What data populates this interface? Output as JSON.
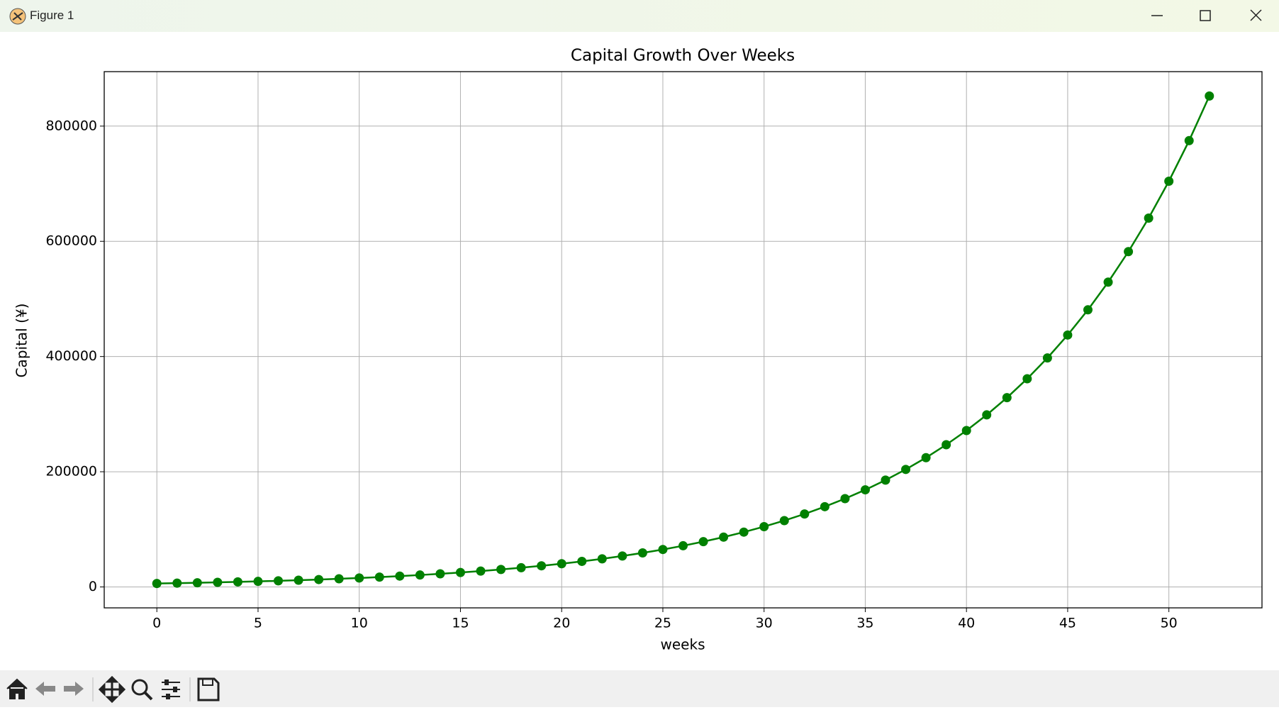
{
  "window": {
    "title": "Figure 1"
  },
  "chart_data": {
    "type": "line",
    "title": "Capital Growth Over Weeks",
    "xlabel": "weeks",
    "ylabel": "Capital (¥)",
    "x": [
      0,
      1,
      2,
      3,
      4,
      5,
      6,
      7,
      8,
      9,
      10,
      11,
      12,
      13,
      14,
      15,
      16,
      17,
      18,
      19,
      20,
      21,
      22,
      23,
      24,
      25,
      26,
      27,
      28,
      29,
      30,
      31,
      32,
      33,
      34,
      35,
      36,
      37,
      38,
      39,
      40,
      41,
      42,
      43,
      44,
      45,
      46,
      47,
      48,
      49,
      50,
      51,
      52
    ],
    "series": [
      {
        "color": "#008000",
        "values": [
          6000,
          6600,
          7260,
          7986,
          8785,
          9663,
          10629,
          11692,
          12862,
          14148,
          15562,
          17119,
          18831,
          20714,
          22785,
          25063,
          27570,
          30327,
          33360,
          36695,
          40365,
          44401,
          48842,
          53726,
          59098,
          65008,
          71509,
          78660,
          86526,
          95179,
          104696,
          115166,
          126683,
          139351,
          153286,
          168615,
          185476,
          204024,
          224426,
          246869,
          271556,
          298711,
          328582,
          361440,
          397584,
          437343,
          481077,
          529185,
          582103,
          640314,
          704345,
          774780,
          852258
        ]
      }
    ],
    "xlim": [
      -2.6,
      54.6
    ],
    "xticks": [
      0,
      5,
      10,
      15,
      20,
      25,
      30,
      35,
      40,
      45,
      50
    ],
    "ylim": [
      -36313,
      894571
    ],
    "yticks": [
      0,
      200000,
      400000,
      600000,
      800000
    ],
    "grid": true
  }
}
